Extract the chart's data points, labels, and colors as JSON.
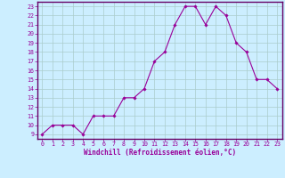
{
  "x": [
    0,
    1,
    2,
    3,
    4,
    5,
    6,
    7,
    8,
    9,
    10,
    11,
    12,
    13,
    14,
    15,
    16,
    17,
    18,
    19,
    20,
    21,
    22,
    23
  ],
  "y": [
    9,
    10,
    10,
    10,
    9,
    11,
    11,
    11,
    13,
    13,
    14,
    17,
    18,
    21,
    23,
    23,
    21,
    23,
    22,
    19,
    18,
    15,
    15,
    14
  ],
  "line_color": "#990099",
  "marker": "D",
  "marker_size": 1.8,
  "line_width": 0.8,
  "bg_color": "#cceeff",
  "grid_color": "#aacccc",
  "xlabel": "Windchill (Refroidissement éolien,°C)",
  "xlim": [
    -0.5,
    23.5
  ],
  "ylim": [
    8.5,
    23.5
  ],
  "ytick_min": 9,
  "ytick_max": 23,
  "label_fontsize": 5.5,
  "tick_fontsize": 4.8,
  "border_color": "#660066"
}
